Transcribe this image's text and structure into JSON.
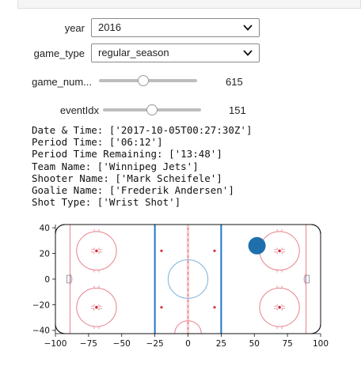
{
  "controls": {
    "year": {
      "label": "year",
      "value": "2016"
    },
    "game_type": {
      "label": "game_type",
      "value": "regular_season"
    },
    "game_num": {
      "label": "game_num...",
      "value": "615",
      "fraction": 0.45
    },
    "event_idx": {
      "label": "eventIdx",
      "value": "151",
      "fraction": 0.5
    }
  },
  "event_info": [
    {
      "key": "Date & Time",
      "value": "['2017-10-05T00:27:30Z']"
    },
    {
      "key": "Period Time",
      "value": "['06:12']"
    },
    {
      "key": "Period Time Remaining",
      "value": "['13:48']"
    },
    {
      "key": "Team Name",
      "value": "['Winnipeg Jets']"
    },
    {
      "key": "Shooter Name",
      "value": "['Mark Scheifele']"
    },
    {
      "key": "Goalie Name",
      "value": "['Frederik Andersen']"
    },
    {
      "key": "Shot Type",
      "value": "['Wrist Shot']"
    }
  ],
  "chart_data": {
    "type": "scatter",
    "xlim": [
      -100,
      100
    ],
    "ylim": [
      -42.5,
      42.5
    ],
    "x_ticks": [
      -100,
      -75,
      -50,
      -25,
      0,
      25,
      50,
      75,
      100
    ],
    "y_ticks": [
      40,
      20,
      0,
      -20,
      -40
    ],
    "x_tick_labels": [
      "−100",
      "−75",
      "−50",
      "−25",
      "0",
      "25",
      "50",
      "75",
      "100"
    ],
    "y_tick_labels": [
      "40",
      "20",
      "0",
      "−20",
      "−40"
    ],
    "points": [
      {
        "x": 52,
        "y": 26
      }
    ],
    "point_color": "#1f6fad",
    "background": "hockey-rink",
    "grid": false
  }
}
